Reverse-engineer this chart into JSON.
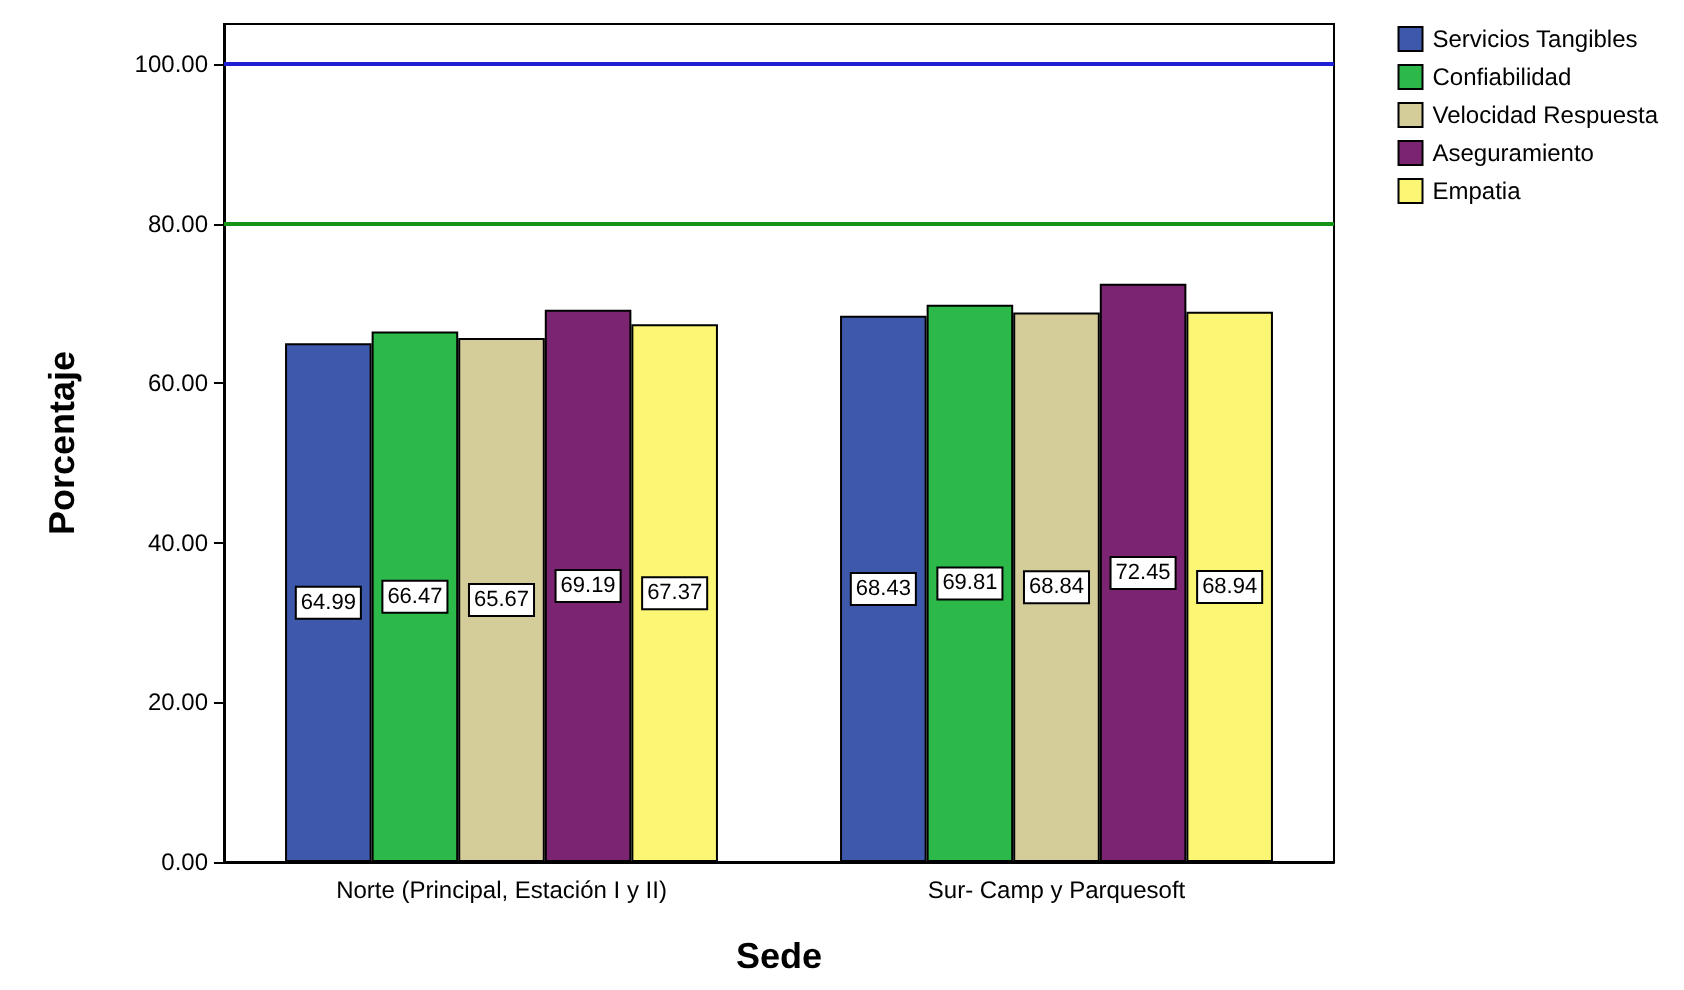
{
  "chart_data": {
    "type": "bar",
    "xlabel": "Sede",
    "ylabel": "Porcentaje",
    "categories": [
      "Norte (Principal, Estación I y II)",
      "Sur- Camp y Parquesoft"
    ],
    "series": [
      {
        "name": "Servicios Tangibles",
        "color": "#3e58ac",
        "values": [
          64.99,
          68.43
        ]
      },
      {
        "name": "Confiabilidad",
        "color": "#2db84a",
        "values": [
          66.47,
          69.81
        ]
      },
      {
        "name": "Velocidad Respuesta",
        "color": "#d4cc99",
        "values": [
          65.67,
          68.84
        ]
      },
      {
        "name": "Aseguramiento",
        "color": "#7b2472",
        "values": [
          69.19,
          72.45
        ]
      },
      {
        "name": "Empatia",
        "color": "#fbf674",
        "values": [
          67.37,
          68.94
        ]
      }
    ],
    "ylim": [
      0,
      105
    ],
    "yticks": [
      {
        "value": 0,
        "label": "0.00"
      },
      {
        "value": 20,
        "label": "20.00"
      },
      {
        "value": 40,
        "label": "40.00"
      },
      {
        "value": 60,
        "label": "60.00"
      },
      {
        "value": 80,
        "label": "80.00"
      },
      {
        "value": 100,
        "label": "100.00"
      }
    ],
    "ref_lines": [
      {
        "axis": "y",
        "value": 100,
        "color": "#1f1fd8"
      },
      {
        "axis": "y",
        "value": 80,
        "color": "#149414"
      }
    ],
    "data_labels": true,
    "grid": false,
    "legend": "top right"
  }
}
